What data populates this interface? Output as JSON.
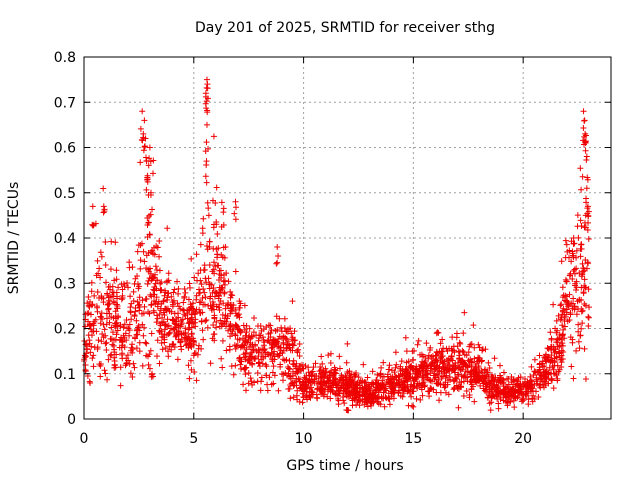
{
  "chart_data": {
    "type": "scatter",
    "title": "Day 201 of 2025, SRMTID for receiver sthg",
    "xlabel": "GPS time / hours",
    "ylabel": "SRMTID / TECUs",
    "xlim": [
      0,
      24
    ],
    "ylim": [
      0,
      0.8
    ],
    "x_ticks": [
      0,
      5,
      10,
      15,
      20
    ],
    "x_tick_labels": [
      "0",
      "5",
      "10",
      "15",
      "20"
    ],
    "y_ticks": [
      0,
      0.1,
      0.2,
      0.3,
      0.4,
      0.5,
      0.6,
      0.7,
      0.8
    ],
    "y_tick_labels": [
      "0",
      "0.1",
      "0.2",
      "0.3",
      "0.4",
      "0.5",
      "0.6",
      "0.7",
      "0.8"
    ],
    "grid": true,
    "marker": "plus",
    "series": [
      {
        "name": "SRMTID",
        "color": "#ee0000",
        "envelope": [
          [
            0.0,
            0.18,
            0.07
          ],
          [
            0.5,
            0.22,
            0.08
          ],
          [
            1.0,
            0.24,
            0.08
          ],
          [
            1.5,
            0.21,
            0.07
          ],
          [
            2.0,
            0.18,
            0.06
          ],
          [
            2.5,
            0.24,
            0.09
          ],
          [
            2.8,
            0.34,
            0.15
          ],
          [
            3.2,
            0.27,
            0.08
          ],
          [
            3.8,
            0.22,
            0.06
          ],
          [
            4.5,
            0.19,
            0.05
          ],
          [
            5.0,
            0.2,
            0.07
          ],
          [
            5.5,
            0.27,
            0.11
          ],
          [
            6.0,
            0.3,
            0.1
          ],
          [
            6.5,
            0.24,
            0.08
          ],
          [
            7.0,
            0.19,
            0.06
          ],
          [
            7.5,
            0.15,
            0.05
          ],
          [
            8.0,
            0.13,
            0.05
          ],
          [
            8.5,
            0.14,
            0.05
          ],
          [
            9.0,
            0.15,
            0.05
          ],
          [
            9.5,
            0.12,
            0.05
          ],
          [
            10.0,
            0.075,
            0.02
          ],
          [
            11.0,
            0.08,
            0.025
          ],
          [
            12.0,
            0.07,
            0.025
          ],
          [
            13.0,
            0.055,
            0.02
          ],
          [
            14.0,
            0.075,
            0.025
          ],
          [
            15.0,
            0.09,
            0.03
          ],
          [
            16.0,
            0.105,
            0.035
          ],
          [
            17.0,
            0.115,
            0.04
          ],
          [
            18.0,
            0.1,
            0.035
          ],
          [
            18.5,
            0.07,
            0.025
          ],
          [
            19.0,
            0.06,
            0.02
          ],
          [
            20.0,
            0.06,
            0.02
          ],
          [
            21.0,
            0.1,
            0.03
          ],
          [
            21.5,
            0.15,
            0.05
          ],
          [
            22.0,
            0.26,
            0.09
          ],
          [
            22.5,
            0.3,
            0.1
          ],
          [
            23.0,
            0.3,
            0.1
          ]
        ],
        "peaks": [
          [
            0.4,
            0.47
          ],
          [
            0.9,
            0.47
          ],
          [
            2.65,
            0.68
          ],
          [
            2.75,
            0.66
          ],
          [
            2.8,
            0.62
          ],
          [
            2.85,
            0.57
          ],
          [
            2.9,
            0.53
          ],
          [
            3.0,
            0.6
          ],
          [
            3.05,
            0.5
          ],
          [
            5.6,
            0.75
          ],
          [
            5.62,
            0.74
          ],
          [
            5.55,
            0.72
          ],
          [
            5.6,
            0.65
          ],
          [
            5.58,
            0.57
          ],
          [
            6.9,
            0.48
          ],
          [
            8.8,
            0.38
          ],
          [
            22.75,
            0.68
          ],
          [
            22.8,
            0.66
          ],
          [
            22.82,
            0.63
          ],
          [
            22.9,
            0.58
          ],
          [
            22.9,
            0.51
          ],
          [
            22.95,
            0.47
          ],
          [
            22.85,
            0.45
          ],
          [
            22.3,
            0.4
          ],
          [
            3.1,
            0.1
          ],
          [
            1.4,
            0.12
          ],
          [
            12.0,
            0.02
          ]
        ]
      }
    ]
  }
}
